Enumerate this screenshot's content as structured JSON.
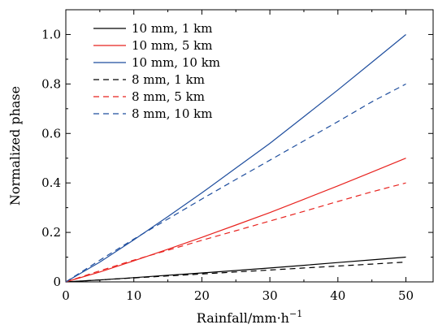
{
  "chart_data": {
    "type": "line",
    "title": "",
    "xlabel": "Rainfall/mm·h",
    "xlabel_superscript": "−1",
    "ylabel": "Normalized phase",
    "xlim": [
      0,
      54
    ],
    "ylim": [
      0,
      1.1
    ],
    "x_ticks": [
      0,
      10,
      20,
      30,
      40,
      50
    ],
    "y_ticks": [
      0,
      0.2,
      0.4,
      0.6,
      0.8,
      1.0
    ],
    "x_tick_labels": [
      "0",
      "10",
      "20",
      "30",
      "40",
      "50"
    ],
    "y_tick_labels": [
      "0",
      "0.2",
      "0.4",
      "0.6",
      "0.8",
      "1.0"
    ],
    "grid": false,
    "legend_position": "top-left",
    "x": [
      0,
      5,
      10,
      15,
      20,
      25,
      30,
      35,
      40,
      45,
      50
    ],
    "series": [
      {
        "name": "10 mm, 1 km",
        "color": "#000000",
        "dash": "solid",
        "values": [
          0,
          0.008,
          0.017,
          0.027,
          0.036,
          0.046,
          0.056,
          0.067,
          0.078,
          0.089,
          0.1
        ]
      },
      {
        "name": "10 mm, 5 km",
        "color": "#e8231f",
        "dash": "solid",
        "values": [
          0,
          0.04,
          0.085,
          0.132,
          0.18,
          0.23,
          0.28,
          0.334,
          0.388,
          0.444,
          0.5
        ]
      },
      {
        "name": "10 mm, 10 km",
        "color": "#1f4e9e",
        "dash": "solid",
        "values": [
          0,
          0.08,
          0.17,
          0.264,
          0.36,
          0.46,
          0.56,
          0.668,
          0.776,
          0.888,
          1.0
        ]
      },
      {
        "name": "8 mm, 1 km",
        "color": "#000000",
        "dash": "dashed",
        "values": [
          0,
          0.008,
          0.016,
          0.024,
          0.032,
          0.04,
          0.048,
          0.056,
          0.064,
          0.072,
          0.08
        ]
      },
      {
        "name": "8 mm, 5 km",
        "color": "#e8231f",
        "dash": "dashed",
        "values": [
          0,
          0.045,
          0.088,
          0.128,
          0.168,
          0.207,
          0.246,
          0.285,
          0.325,
          0.364,
          0.4
        ]
      },
      {
        "name": "8 mm, 10 km",
        "color": "#1f4e9e",
        "dash": "dashed",
        "values": [
          0,
          0.088,
          0.173,
          0.254,
          0.335,
          0.414,
          0.492,
          0.57,
          0.648,
          0.728,
          0.8
        ]
      }
    ]
  }
}
